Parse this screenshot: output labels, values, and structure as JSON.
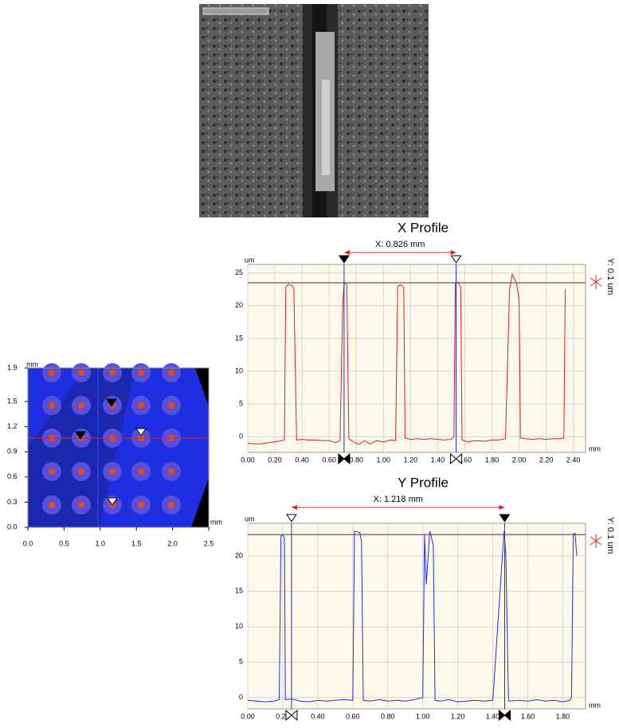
{
  "chart_data": [
    {
      "type": "surface",
      "x_label": "mm",
      "y_label": "mm",
      "xlim": [
        0,
        2.5
      ],
      "ylim": [
        0,
        1.9
      ],
      "xticks": [
        {
          "value": 0,
          "label": "0.0"
        },
        0.5,
        {
          "value": 1,
          "label": "1.0"
        },
        1.5,
        {
          "value": 2,
          "label": "2.0"
        },
        2.5
      ],
      "yticks": [
        {
          "value": 0,
          "label": "0.0"
        },
        0.3,
        0.6,
        0.9,
        1.2,
        1.5,
        1.9
      ]
    },
    {
      "type": "line",
      "title": "X Profile",
      "annotation": "X: 0.826 mm",
      "y_label": "um",
      "x_label": "mm",
      "side_label": "Y: 0.1 um",
      "color": "#e02020",
      "xlim": [
        0,
        2.49
      ],
      "ylim": [
        -2.4,
        26.3
      ],
      "xticks": [
        {
          "value": 0,
          "label": "0.00"
        },
        {
          "value": 0.2,
          "label": "0.20"
        },
        {
          "value": 0.4,
          "label": "0.40"
        },
        {
          "value": 0.6,
          "label": "0.60"
        },
        {
          "value": 0.8,
          "label": "0.80"
        },
        {
          "value": 1,
          "label": "1.00"
        },
        {
          "value": 1.2,
          "label": "1.20"
        },
        {
          "value": 1.4,
          "label": "1.40"
        },
        {
          "value": 1.6,
          "label": "1.60"
        },
        {
          "value": 1.8,
          "label": "1.80"
        },
        {
          "value": 2,
          "label": "2.00"
        },
        {
          "value": 2.2,
          "label": "2.20"
        },
        {
          "value": 2.4,
          "label": "2.40"
        }
      ],
      "yticks": [
        0,
        5,
        10,
        15,
        20,
        25
      ],
      "hline": 23.5,
      "cursors": [
        0.71,
        1.536
      ],
      "x": [
        0,
        0.05,
        0.1,
        0.15,
        0.2,
        0.25,
        0.27,
        0.28,
        0.3,
        0.33,
        0.34,
        0.36,
        0.4,
        0.45,
        0.5,
        0.55,
        0.6,
        0.65,
        0.68,
        0.7,
        0.71,
        0.73,
        0.745,
        0.78,
        0.82,
        0.86,
        0.9,
        0.95,
        1,
        1.05,
        1.09,
        1.105,
        1.13,
        1.15,
        1.16,
        1.2,
        1.25,
        1.3,
        1.35,
        1.4,
        1.45,
        1.5,
        1.52,
        1.53,
        1.55,
        1.57,
        1.58,
        1.62,
        1.68,
        1.75,
        1.8,
        1.85,
        1.9,
        1.93,
        1.95,
        1.98,
        2,
        2.01,
        2.05,
        2.1,
        2.15,
        2.2,
        2.25,
        2.3,
        2.33,
        2.34
      ],
      "values": [
        -1,
        -1.1,
        -1.1,
        -0.9,
        -0.8,
        -0.6,
        -0.5,
        22.8,
        23.3,
        23,
        22.5,
        -0.5,
        -0.4,
        -0.5,
        -0.5,
        -0.6,
        -0.6,
        -0.9,
        -0.6,
        20,
        23.5,
        23.2,
        -0.3,
        -0.8,
        -1.2,
        -0.6,
        -1.1,
        -0.6,
        -0.8,
        -0.5,
        -0.6,
        23,
        23.2,
        22.8,
        -0.2,
        -0.4,
        -0.3,
        -0.4,
        -0.3,
        -0.4,
        -0.5,
        -0.4,
        0,
        23.4,
        23.6,
        22.8,
        -0.5,
        -0.8,
        -0.6,
        -0.7,
        -0.5,
        -0.5,
        -0.3,
        22.5,
        24.8,
        23.5,
        21,
        -0.2,
        -0.3,
        -0.4,
        -0.3,
        -0.4,
        -0.3,
        -0.3,
        -0.2,
        22.5
      ]
    },
    {
      "type": "line",
      "title": "Y Profile",
      "annotation": "X: 1.218 mm",
      "y_label": "um",
      "x_label": "mm",
      "side_label": "Y: 0.1 um",
      "color": "#2030e0",
      "xlim": [
        0,
        1.93
      ],
      "ylim": [
        -1.6,
        24.6
      ],
      "xticks": [
        {
          "value": 0,
          "label": "0.00"
        },
        {
          "value": 0.2,
          "label": "0.20"
        },
        {
          "value": 0.4,
          "label": "0.40"
        },
        {
          "value": 0.6,
          "label": "0.60"
        },
        {
          "value": 0.8,
          "label": "0.80"
        },
        {
          "value": 1,
          "label": "1.00"
        },
        {
          "value": 1.2,
          "label": "1.20"
        },
        {
          "value": 1.4,
          "label": "1.40"
        },
        {
          "value": 1.6,
          "label": "1.60"
        },
        {
          "value": 1.8,
          "label": "1.80"
        }
      ],
      "yticks": [
        0,
        5,
        10,
        15,
        20
      ],
      "hline": 23,
      "cursors": [
        0.25,
        1.468
      ],
      "x": [
        0,
        0.05,
        0.1,
        0.15,
        0.18,
        0.19,
        0.2,
        0.21,
        0.215,
        0.25,
        0.3,
        0.35,
        0.4,
        0.45,
        0.5,
        0.55,
        0.6,
        0.61,
        0.64,
        0.65,
        0.66,
        0.7,
        0.75,
        0.8,
        0.85,
        0.9,
        0.95,
        1,
        1.01,
        1.02,
        1.04,
        1.06,
        1.07,
        1.1,
        1.15,
        1.2,
        1.25,
        1.3,
        1.35,
        1.4,
        1.455,
        1.465,
        1.475,
        1.49,
        1.55,
        1.6,
        1.65,
        1.7,
        1.75,
        1.8,
        1.84,
        1.85,
        1.86,
        1.87,
        1.88
      ],
      "values": [
        -0.4,
        -0.5,
        -0.6,
        -0.5,
        -0.3,
        22.8,
        23,
        22.5,
        -0.3,
        -0.2,
        -0.5,
        -0.6,
        -0.4,
        -0.5,
        -0.4,
        -0.3,
        -0.4,
        23.5,
        23.3,
        22,
        -0.4,
        -0.5,
        -0.3,
        -0.5,
        -0.4,
        -0.5,
        -0.3,
        0,
        23,
        16,
        23.5,
        21.5,
        -0.4,
        -0.5,
        -0.3,
        -0.6,
        -0.5,
        -0.4,
        -0.5,
        -0.4,
        20,
        23.5,
        20,
        -0.5,
        -0.4,
        -0.5,
        -0.3,
        -0.5,
        -0.4,
        -0.6,
        -0.4,
        0,
        23,
        23.2,
        20
      ]
    }
  ]
}
